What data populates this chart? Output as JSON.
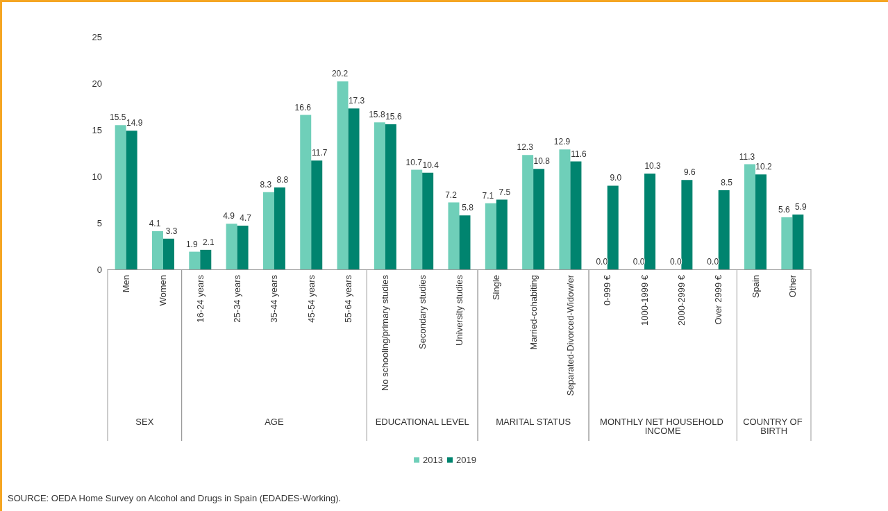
{
  "chart_data": {
    "type": "bar",
    "categories": [
      "Men",
      "Women",
      "16-24 years",
      "25-34 years",
      "35-44 years",
      "45-54 years",
      "55-64 years",
      "No schooling/primary studies",
      "Secondary studies",
      "University studies",
      "Single",
      "Married-cohabiting",
      "Separated-Divorced-Widow/er",
      "0-999 €",
      "1000-1999 €",
      "2000-2999 €",
      "Over 2999 €",
      "Spain",
      "Other"
    ],
    "series": [
      {
        "name": "2013",
        "color": "#6fcfb9",
        "values": [
          15.5,
          4.1,
          1.9,
          4.9,
          8.3,
          16.6,
          20.2,
          15.8,
          10.7,
          7.2,
          7.1,
          12.3,
          12.9,
          0.0,
          0.0,
          0.0,
          0.0,
          11.3,
          5.6
        ],
        "value_labels": [
          "15.5",
          "4.1",
          "1.9",
          "4.9",
          "8.3",
          "16.6",
          "20.2",
          "15.8",
          "10.7",
          "7.2",
          "7.1",
          "12.3",
          "12.9",
          "0.0",
          "0.0",
          "0.0",
          "0.0",
          "11.3",
          "5.6"
        ]
      },
      {
        "name": "2019",
        "color": "#00846f",
        "values": [
          14.9,
          3.3,
          2.1,
          4.7,
          8.8,
          11.7,
          17.3,
          15.6,
          10.4,
          5.8,
          7.5,
          10.8,
          11.6,
          9.0,
          10.3,
          9.6,
          8.5,
          10.2,
          5.9
        ],
        "value_labels": [
          "14.9",
          "3.3",
          "2.1",
          "4.7",
          "8.8",
          "11.7",
          "17.3",
          "15.6",
          "10.4",
          "5.8",
          "7.5",
          "10.8",
          "11.6",
          "9.0",
          "10.3",
          "9.6",
          "8.5",
          "10.2",
          "5.9"
        ]
      }
    ],
    "ylim": [
      0,
      25
    ],
    "yticks": [
      0,
      5,
      10,
      15,
      20,
      25
    ],
    "grid": false,
    "legend": "bottom",
    "annotations": [
      "SEX",
      "AGE",
      "EDUCATIONAL LEVEL",
      "MARITAL STATUS",
      "MONTHLY NET HOUSEHOLD INCOME",
      "COUNTRY OF BIRTH",
      "SOURCE: OEDA Home Survey on Alcohol and Drugs in Spain (EDADES-Working)."
    ]
  }
}
